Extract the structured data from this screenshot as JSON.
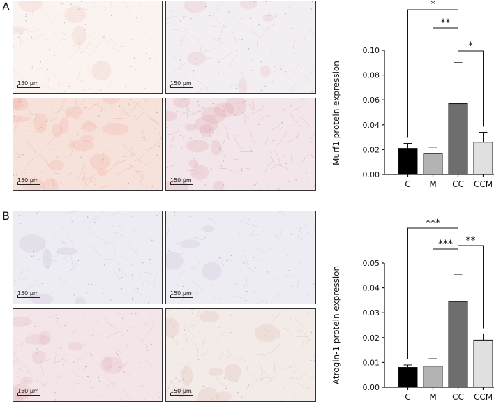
{
  "panels": [
    {
      "letter": "A",
      "images": [
        {
          "scale_label": "150 µm",
          "tint": "#fbf3ef",
          "stain": "#e9b3a4",
          "density": 0.15
        },
        {
          "scale_label": "150 µm",
          "tint": "#f3eef2",
          "stain": "#d8a3ab",
          "density": 0.2
        },
        {
          "scale_label": "150 µm",
          "tint": "#f7e1db",
          "stain": "#ec9d88",
          "density": 0.55
        },
        {
          "scale_label": "150 µm",
          "tint": "#f2e6ea",
          "stain": "#d88c8f",
          "density": 0.45
        }
      ]
    },
    {
      "letter": "B",
      "images": [
        {
          "scale_label": "150 µm",
          "tint": "#eeecf3",
          "stain": "#b8a9c7",
          "density": 0.15
        },
        {
          "scale_label": "150 µm",
          "tint": "#eeecf3",
          "stain": "#b8a9c7",
          "density": 0.12
        },
        {
          "scale_label": "150 µm",
          "tint": "#f4e6e8",
          "stain": "#dfa3a6",
          "density": 0.35
        },
        {
          "scale_label": "150 µm",
          "tint": "#f3ebe8",
          "stain": "#d9a89d",
          "density": 0.3
        }
      ]
    }
  ],
  "chart_data": [
    {
      "type": "bar",
      "categories": [
        "C",
        "M",
        "CC",
        "CCM"
      ],
      "values": [
        0.021,
        0.017,
        0.057,
        0.026
      ],
      "errors": [
        0.004,
        0.005,
        0.033,
        0.008
      ],
      "colors": [
        "#000000",
        "#b3b3b3",
        "#6e6e6e",
        "#e0e0e0"
      ],
      "ylabel": "Murf1 protein expression",
      "ylim": [
        0,
        0.1
      ],
      "yticks": [
        "0.00",
        "0.02",
        "0.04",
        "0.06",
        "0.08",
        "0.10"
      ],
      "significance": [
        {
          "from": "C",
          "to": "CC",
          "label": "*"
        },
        {
          "from": "M",
          "to": "CC",
          "label": "**"
        },
        {
          "from": "CC",
          "to": "CCM",
          "label": "*"
        }
      ]
    },
    {
      "type": "bar",
      "categories": [
        "C",
        "M",
        "CC",
        "CCM"
      ],
      "values": [
        0.008,
        0.0085,
        0.0345,
        0.019
      ],
      "errors": [
        0.001,
        0.003,
        0.011,
        0.0025
      ],
      "colors": [
        "#000000",
        "#b3b3b3",
        "#6e6e6e",
        "#e0e0e0"
      ],
      "ylabel": "Atrogin-1 protein expression",
      "ylim": [
        0,
        0.05
      ],
      "yticks": [
        "0.00",
        "0.01",
        "0.02",
        "0.03",
        "0.04",
        "0.05"
      ],
      "significance": [
        {
          "from": "C",
          "to": "CC",
          "label": "***"
        },
        {
          "from": "M",
          "to": "CC",
          "label": "***"
        },
        {
          "from": "CC",
          "to": "CCM",
          "label": "**"
        }
      ]
    }
  ]
}
